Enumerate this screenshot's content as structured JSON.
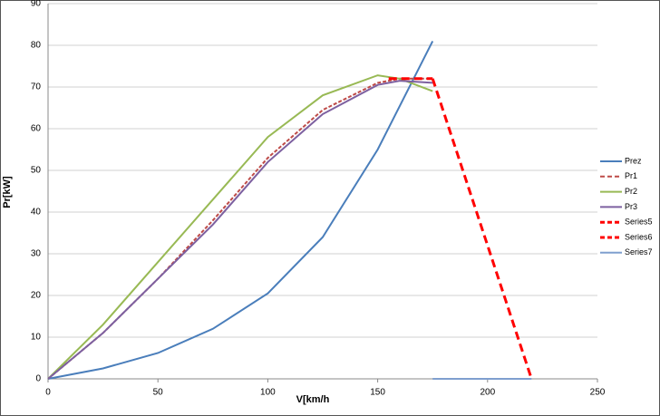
{
  "chart_data": {
    "type": "line",
    "x_label": "V[km/h",
    "y_label": "Pr[kW]",
    "xlim": [
      0,
      250
    ],
    "xticks": [
      0,
      50,
      100,
      150,
      200,
      250
    ],
    "ylim": [
      0,
      90
    ],
    "yticks": [
      0,
      10,
      20,
      30,
      40,
      50,
      60,
      70,
      80,
      90
    ],
    "grid": true,
    "legend": "right",
    "series": [
      {
        "name": "Prez",
        "color": "#4a7ebb",
        "dashed": false,
        "x": [
          0,
          25,
          50,
          75,
          100,
          125,
          150,
          175
        ],
        "values": [
          0,
          2.5,
          6.2,
          12,
          20.5,
          34,
          55,
          81
        ]
      },
      {
        "name": "Pr1",
        "color": "#be4b48",
        "dashed": true,
        "x": [
          0,
          25,
          50,
          75,
          100,
          125,
          150,
          160,
          175
        ],
        "values": [
          0,
          11,
          24,
          38,
          53,
          64.5,
          71,
          72,
          72
        ]
      },
      {
        "name": "Pr2",
        "color": "#98b954",
        "dashed": false,
        "x": [
          0,
          25,
          50,
          75,
          100,
          125,
          150,
          160,
          175
        ],
        "values": [
          0,
          13,
          28,
          43,
          58,
          68,
          72.8,
          72,
          69
        ]
      },
      {
        "name": "Pr3",
        "color": "#7d60a0",
        "dashed": false,
        "x": [
          0,
          25,
          50,
          75,
          100,
          125,
          150,
          160,
          175
        ],
        "values": [
          0,
          11,
          24,
          37,
          52,
          63.5,
          70.5,
          71.5,
          71
        ]
      },
      {
        "name": "Series5",
        "color": "#ff0000",
        "dashed": true,
        "x": [
          155,
          175
        ],
        "values": [
          72,
          72
        ]
      },
      {
        "name": "Series6",
        "color": "#ff0000",
        "dashed": true,
        "x": [
          175,
          220
        ],
        "values": [
          72,
          0
        ]
      },
      {
        "name": "Series7",
        "color": "#7f9fcf",
        "dashed": false,
        "x": [
          175,
          220
        ],
        "values": [
          0,
          0
        ]
      }
    ]
  }
}
